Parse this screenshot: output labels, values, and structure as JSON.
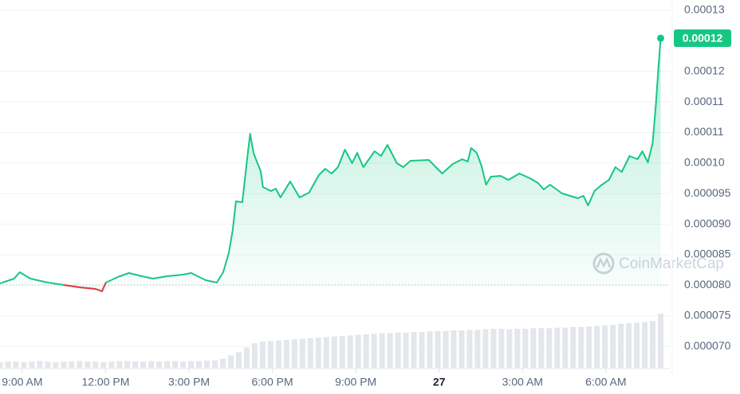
{
  "chart_data": {
    "type": "line",
    "x": [
      8.2,
      8.71,
      8.91,
      9.29,
      9.92,
      10.49,
      11.07,
      11.64,
      11.87,
      12.01,
      12.44,
      12.84,
      13.3,
      13.7,
      14.22,
      14.79,
      15.08,
      15.6,
      16.0,
      16.23,
      16.43,
      16.57,
      16.69,
      16.92,
      17.09,
      17.2,
      17.32,
      17.43,
      17.58,
      17.66,
      17.95,
      18.12,
      18.29,
      18.64,
      18.98,
      19.32,
      19.67,
      19.9,
      20.13,
      20.36,
      20.61,
      20.87,
      21.05,
      21.27,
      21.68,
      21.91,
      22.14,
      22.48,
      22.71,
      22.97,
      23.63,
      24.11,
      24.49,
      24.83,
      25.03,
      25.15,
      25.35,
      25.52,
      25.69,
      25.86,
      26.21,
      26.49,
      26.89,
      27.27,
      27.56,
      27.76,
      27.99,
      28.42,
      28.99,
      29.19,
      29.36,
      29.59,
      29.82,
      30.11,
      30.34,
      30.57,
      30.85,
      31.14,
      31.31,
      31.51,
      31.68,
      31.8,
      31.89,
      31.97
    ],
    "series": [
      {
        "color": "#16c784",
        "below_color": "#ea3943",
        "values": [
          8.031e-05,
          8.109e-05,
          8.214e-05,
          8.109e-05,
          8.044e-05,
          8.005e-05,
          7.966e-05,
          7.94e-05,
          7.901e-05,
          8.044e-05,
          8.135e-05,
          8.201e-05,
          8.148e-05,
          8.109e-05,
          8.148e-05,
          8.175e-05,
          8.201e-05,
          8.083e-05,
          8.044e-05,
          8.214e-05,
          8.526e-05,
          8.891e-05,
          9.373e-05,
          9.36e-05,
          0.00010064,
          0.00010481,
          0.00010168,
          0.00010038,
          9.868e-05,
          9.608e-05,
          9.543e-05,
          9.582e-05,
          9.438e-05,
          9.699e-05,
          9.438e-05,
          9.517e-05,
          9.803e-05,
          9.908e-05,
          9.829e-05,
          9.934e-05,
          0.0001022,
          9.999e-05,
          0.00010168,
          9.934e-05,
          0.00010194,
          0.00010116,
          0.00010298,
          9.999e-05,
          9.934e-05,
          0.00010038,
          0.00010051,
          9.829e-05,
          9.986e-05,
          0.00010064,
          0.00010025,
          0.00010246,
          0.00010168,
          9.96e-05,
          9.647e-05,
          9.777e-05,
          9.79e-05,
          9.725e-05,
          9.829e-05,
          9.751e-05,
          9.673e-05,
          9.569e-05,
          9.647e-05,
          9.504e-05,
          9.425e-05,
          9.464e-05,
          9.308e-05,
          9.543e-05,
          9.634e-05,
          9.725e-05,
          9.934e-05,
          9.855e-05,
          0.00010116,
          0.00010064,
          0.00010194,
          0.00010012,
          0.00010324,
          0.00010976,
          0.00011562,
          0.00012044
        ]
      }
    ],
    "reference": 8.005e-05,
    "price_label": "0.00012",
    "volume": [
      10,
      11,
      11,
      10,
      11,
      12,
      11,
      10,
      11,
      11,
      12,
      11,
      11,
      10,
      11,
      12,
      12,
      11,
      11,
      12,
      11,
      12,
      12,
      11,
      12,
      12,
      13,
      13,
      16,
      22,
      28,
      36,
      44,
      47,
      48,
      49,
      50,
      51,
      52,
      53,
      54,
      55,
      56,
      57,
      58,
      59,
      60,
      61,
      62,
      62,
      63,
      63,
      64,
      64,
      65,
      66,
      66,
      67,
      67,
      68,
      68,
      69,
      70,
      70,
      69,
      70,
      70,
      71,
      71,
      71,
      72,
      72,
      73,
      73,
      74,
      75,
      76,
      77,
      79,
      80,
      81,
      82,
      84,
      97
    ],
    "volume_lim": [
      0,
      100
    ],
    "xlim": [
      8.2,
      32.3
    ],
    "xticks": [
      {
        "value": 9,
        "label": "9:00 AM"
      },
      {
        "value": 12,
        "label": "12:00 PM"
      },
      {
        "value": 15,
        "label": "3:00 PM"
      },
      {
        "value": 18,
        "label": "6:00 PM"
      },
      {
        "value": 21,
        "label": "9:00 PM"
      },
      {
        "value": 24,
        "label": "27"
      },
      {
        "value": 27,
        "label": "3:00 AM"
      },
      {
        "value": 30,
        "label": "6:00 AM"
      }
    ],
    "ylim": [
      6.65e-05,
      0.0001267
    ],
    "yticks": [
      {
        "value": 0.000125,
        "label": "0.00013"
      },
      {
        "value": 0.000115,
        "label": "0.00012"
      },
      0.00011,
      {
        "value": 0.000105,
        "label": "0.00011"
      },
      {
        "value": 0.0001,
        "label": "0.00010"
      },
      9.5e-05,
      {
        "value": 9e-05,
        "label": "0.000090"
      },
      8.5e-05,
      {
        "value": 8e-05,
        "label": "0.000080"
      },
      7.5e-05,
      {
        "value": 7e-05,
        "label": "0.000070"
      }
    ],
    "grid": true,
    "watermark": "CoinMarketCap"
  }
}
